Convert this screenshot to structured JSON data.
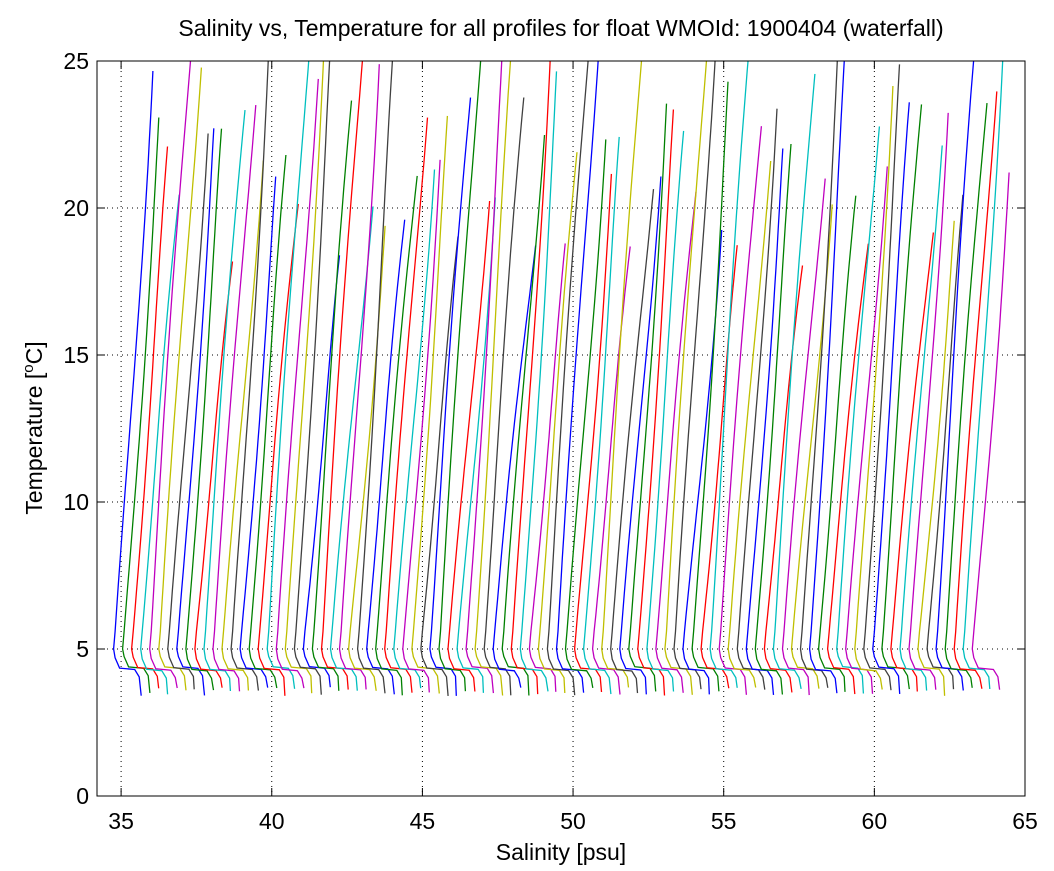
{
  "chart_data": {
    "type": "line",
    "title": "Salinity vs, Temperature for all profiles for float WMOId: 1900404 (waterfall)",
    "xlabel": "Salinity [psu]",
    "ylabel_main": "Temperature [",
    "ylabel_sup": "o",
    "ylabel_end": "C]",
    "xlim": [
      34.2,
      65
    ],
    "ylim": [
      0,
      25
    ],
    "x_ticks": [
      35,
      40,
      45,
      50,
      55,
      60,
      65
    ],
    "y_ticks": [
      0,
      5,
      10,
      15,
      20,
      25
    ],
    "grid": true,
    "grid_style": "dotted",
    "series_colors": [
      "#0000ff",
      "#008000",
      "#ff0000",
      "#00bfbf",
      "#bf00bf",
      "#bfbf00",
      "#404040"
    ],
    "waterfall": {
      "profile_count": 96,
      "first_offset_psu": 34.9,
      "offset_step_psu": 0.3,
      "deep_temperature": 4.3
    }
  }
}
